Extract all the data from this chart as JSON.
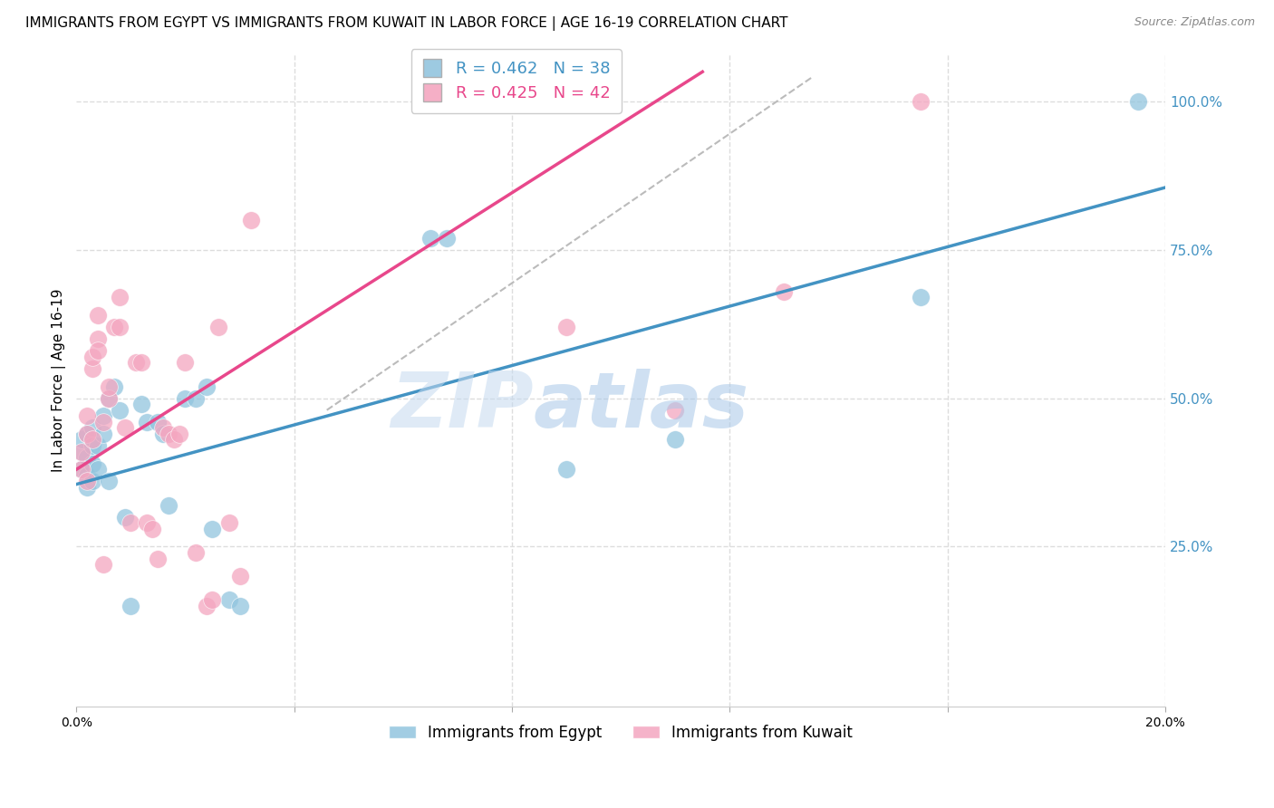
{
  "title": "IMMIGRANTS FROM EGYPT VS IMMIGRANTS FROM KUWAIT IN LABOR FORCE | AGE 16-19 CORRELATION CHART",
  "source": "Source: ZipAtlas.com",
  "ylabel": "In Labor Force | Age 16-19",
  "xlim": [
    0.0,
    0.2
  ],
  "ylim": [
    -0.02,
    1.08
  ],
  "xticks": [
    0.0,
    0.04,
    0.08,
    0.12,
    0.16,
    0.2
  ],
  "xtick_labels": [
    "0.0%",
    "",
    "",
    "",
    "",
    "20.0%"
  ],
  "ytick_labels_right": [
    "100.0%",
    "75.0%",
    "50.0%",
    "25.0%"
  ],
  "yticks_right": [
    1.0,
    0.75,
    0.5,
    0.25
  ],
  "egypt_R": 0.462,
  "egypt_N": 38,
  "kuwait_R": 0.425,
  "kuwait_N": 42,
  "egypt_color": "#92c5de",
  "kuwait_color": "#f4a6c0",
  "egypt_line_color": "#4393c3",
  "kuwait_line_color": "#e8478b",
  "ref_line_color": "#bbbbbb",
  "watermark_zip": "ZIP",
  "watermark_atlas": "atlas",
  "egypt_x": [
    0.001,
    0.001,
    0.001,
    0.002,
    0.002,
    0.002,
    0.002,
    0.003,
    0.003,
    0.003,
    0.003,
    0.004,
    0.004,
    0.005,
    0.005,
    0.006,
    0.006,
    0.007,
    0.008,
    0.009,
    0.01,
    0.012,
    0.013,
    0.015,
    0.016,
    0.017,
    0.02,
    0.022,
    0.024,
    0.025,
    0.028,
    0.03,
    0.065,
    0.068,
    0.09,
    0.11,
    0.155,
    0.195
  ],
  "egypt_y": [
    0.38,
    0.41,
    0.43,
    0.35,
    0.37,
    0.4,
    0.44,
    0.36,
    0.39,
    0.42,
    0.45,
    0.38,
    0.42,
    0.44,
    0.47,
    0.36,
    0.5,
    0.52,
    0.48,
    0.3,
    0.15,
    0.49,
    0.46,
    0.46,
    0.44,
    0.32,
    0.5,
    0.5,
    0.52,
    0.28,
    0.16,
    0.15,
    0.77,
    0.77,
    0.38,
    0.43,
    0.67,
    1.0
  ],
  "kuwait_x": [
    0.001,
    0.001,
    0.002,
    0.002,
    0.002,
    0.003,
    0.003,
    0.003,
    0.004,
    0.004,
    0.004,
    0.005,
    0.005,
    0.006,
    0.006,
    0.007,
    0.008,
    0.008,
    0.009,
    0.01,
    0.011,
    0.012,
    0.013,
    0.014,
    0.015,
    0.016,
    0.017,
    0.018,
    0.019,
    0.02,
    0.022,
    0.024,
    0.025,
    0.026,
    0.028,
    0.03,
    0.032,
    0.065,
    0.09,
    0.11,
    0.13,
    0.155
  ],
  "kuwait_y": [
    0.38,
    0.41,
    0.36,
    0.44,
    0.47,
    0.43,
    0.55,
    0.57,
    0.6,
    0.58,
    0.64,
    0.22,
    0.46,
    0.5,
    0.52,
    0.62,
    0.67,
    0.62,
    0.45,
    0.29,
    0.56,
    0.56,
    0.29,
    0.28,
    0.23,
    0.45,
    0.44,
    0.43,
    0.44,
    0.56,
    0.24,
    0.15,
    0.16,
    0.62,
    0.29,
    0.2,
    0.8,
    1.0,
    0.62,
    0.48,
    0.68,
    1.0
  ],
  "egypt_line_x": [
    0.0,
    0.2
  ],
  "egypt_line_y": [
    0.355,
    0.855
  ],
  "kuwait_line_x": [
    0.0,
    0.115
  ],
  "kuwait_line_y": [
    0.38,
    1.05
  ],
  "ref_line_x": [
    0.046,
    0.135
  ],
  "ref_line_y": [
    0.48,
    1.04
  ],
  "grid_color": "#dddddd",
  "background_color": "#ffffff",
  "title_fontsize": 11,
  "axis_label_fontsize": 11,
  "tick_fontsize": 10,
  "legend_fontsize": 13
}
